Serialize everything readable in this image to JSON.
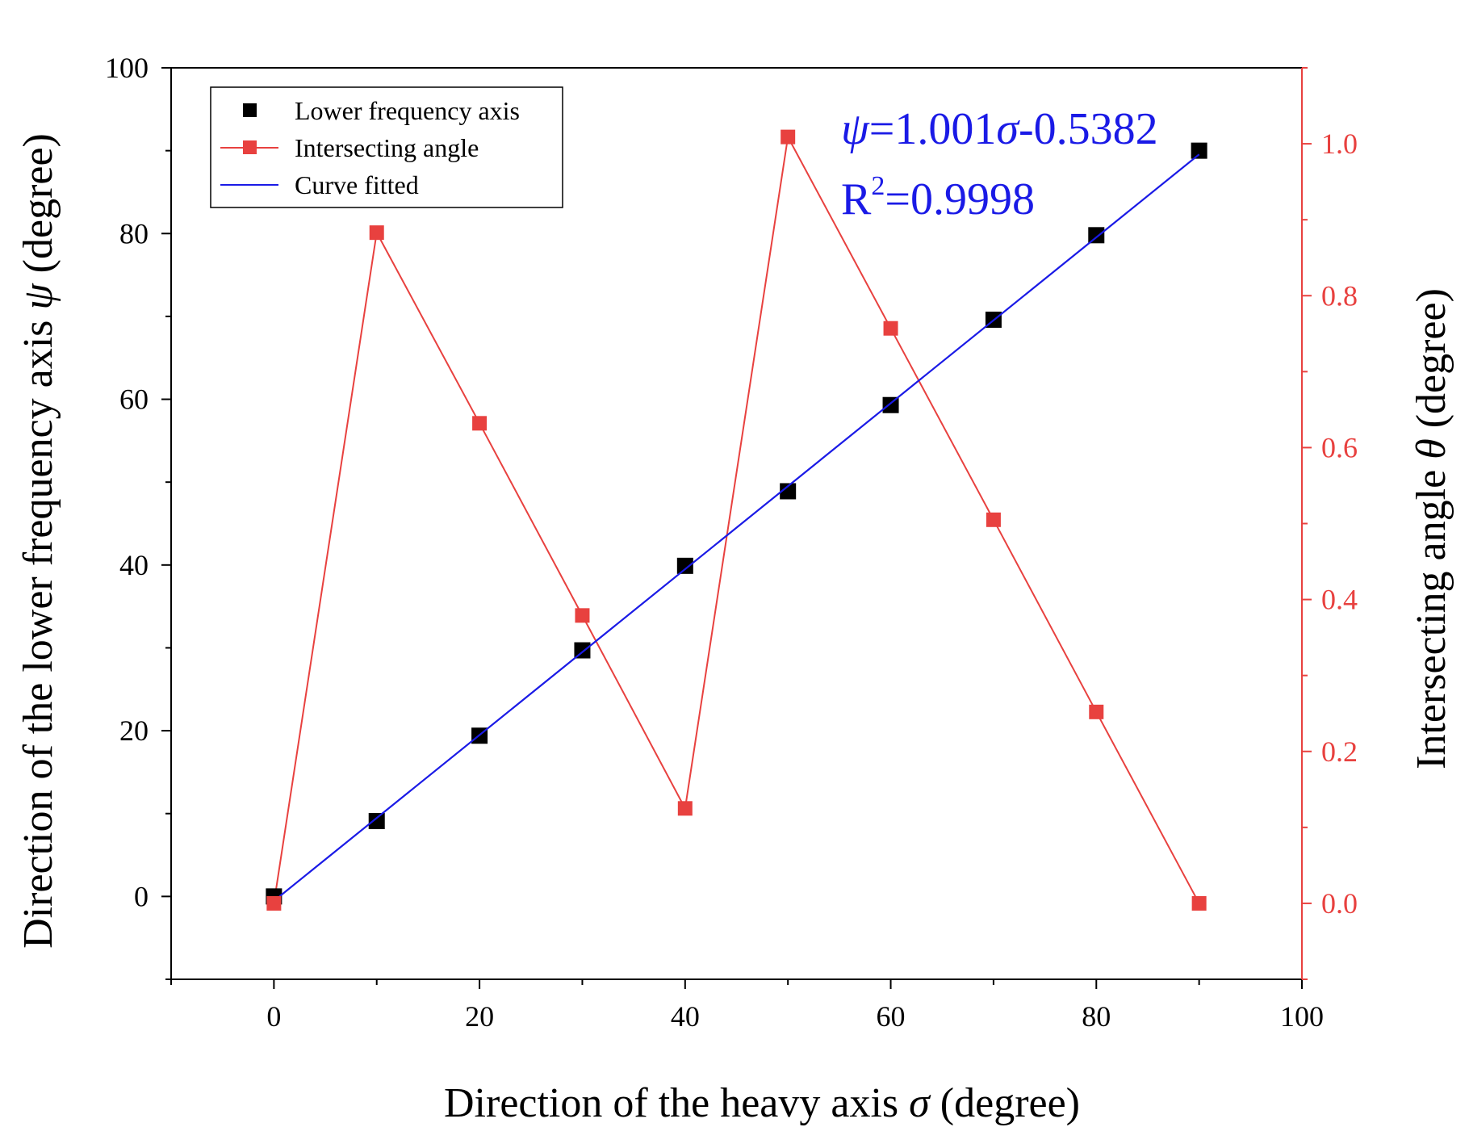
{
  "chart_data": {
    "type": "line",
    "xlabel": "Direction of the heavy axis σ (degree)",
    "xlabel_parts": {
      "pre": "Direction of the heavy axis ",
      "sym": "σ",
      "post": " (degree)"
    },
    "ylabel": "Direction of the lower frequency axis ψ (degree)",
    "ylabel_parts": {
      "pre": "Direction of the lower frequency axis ",
      "sym": "ψ",
      "post": " (degree)"
    },
    "y2label": "Intersecting angle θ (degree)",
    "y2label_parts": {
      "pre": "Intersecting angle ",
      "sym": "θ",
      "post": " (degree)"
    },
    "xlim": [
      -10,
      100
    ],
    "ylim": [
      -10,
      100
    ],
    "y2lim": [
      -0.1,
      1.1
    ],
    "xticks": [
      "0",
      "20",
      "40",
      "60",
      "80",
      "100"
    ],
    "xtick_values": [
      0,
      20,
      40,
      60,
      80,
      100
    ],
    "yticks": [
      "0",
      "20",
      "40",
      "60",
      "80",
      "100"
    ],
    "ytick_values": [
      0,
      20,
      40,
      60,
      80,
      100
    ],
    "y2ticks": [
      "0.0",
      "0.2",
      "0.4",
      "0.6",
      "0.8",
      "1.0"
    ],
    "y2tick_values": [
      0.0,
      0.2,
      0.4,
      0.6,
      0.8,
      1.0
    ],
    "legend_position": "top-left",
    "series": [
      {
        "name": "Lower frequency axis",
        "axis": "left",
        "style": "scatter",
        "color": "#000000",
        "x": [
          0,
          10,
          20,
          30,
          40,
          50,
          60,
          70,
          80,
          90
        ],
        "y": [
          0,
          9.1,
          19.4,
          29.7,
          39.9,
          48.9,
          59.3,
          69.6,
          79.8,
          90.0
        ]
      },
      {
        "name": "Intersecting angle",
        "axis": "right",
        "style": "line-marker",
        "color": "#e8413f",
        "x": [
          0,
          10,
          20,
          30,
          40,
          50,
          60,
          70,
          80,
          90
        ],
        "y": [
          0.0,
          0.883,
          0.632,
          0.379,
          0.125,
          1.009,
          0.757,
          0.505,
          0.252,
          0.0
        ]
      },
      {
        "name": "Curve fitted",
        "axis": "left",
        "style": "line",
        "color": "#1a1ae6",
        "x": [
          0.54,
          90
        ],
        "y": [
          0,
          89.55
        ]
      }
    ],
    "annotations": {
      "equation": {
        "sym1": "ψ",
        "eq1": "=1.001",
        "sym2": "σ",
        "rest": "-0.5382"
      },
      "r2": {
        "base": "R",
        "sup": "2",
        "rest": "=0.9998"
      }
    }
  }
}
